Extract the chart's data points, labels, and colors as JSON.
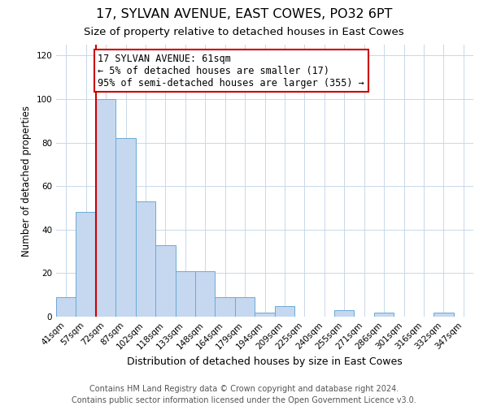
{
  "title": "17, SYLVAN AVENUE, EAST COWES, PO32 6PT",
  "subtitle": "Size of property relative to detached houses in East Cowes",
  "xlabel": "Distribution of detached houses by size in East Cowes",
  "ylabel": "Number of detached properties",
  "categories": [
    "41sqm",
    "57sqm",
    "72sqm",
    "87sqm",
    "102sqm",
    "118sqm",
    "133sqm",
    "148sqm",
    "164sqm",
    "179sqm",
    "194sqm",
    "209sqm",
    "225sqm",
    "240sqm",
    "255sqm",
    "271sqm",
    "286sqm",
    "301sqm",
    "316sqm",
    "332sqm",
    "347sqm"
  ],
  "values": [
    9,
    48,
    100,
    82,
    53,
    33,
    21,
    21,
    9,
    9,
    2,
    5,
    0,
    0,
    3,
    0,
    2,
    0,
    0,
    2,
    0
  ],
  "bar_color": "#c5d8f0",
  "bar_edge_color": "#6aaad4",
  "vline_color": "#cc0000",
  "annotation_text": "17 SYLVAN AVENUE: 61sqm\n← 5% of detached houses are smaller (17)\n95% of semi-detached houses are larger (355) →",
  "annotation_box_color": "#ffffff",
  "annotation_box_edge_color": "#cc0000",
  "ylim": [
    0,
    125
  ],
  "yticks": [
    0,
    20,
    40,
    60,
    80,
    100,
    120
  ],
  "footer_line1": "Contains HM Land Registry data © Crown copyright and database right 2024.",
  "footer_line2": "Contains public sector information licensed under the Open Government Licence v3.0.",
  "title_fontsize": 11.5,
  "subtitle_fontsize": 9.5,
  "xlabel_fontsize": 9,
  "ylabel_fontsize": 8.5,
  "tick_fontsize": 7.5,
  "annotation_fontsize": 8.5,
  "footer_fontsize": 7
}
